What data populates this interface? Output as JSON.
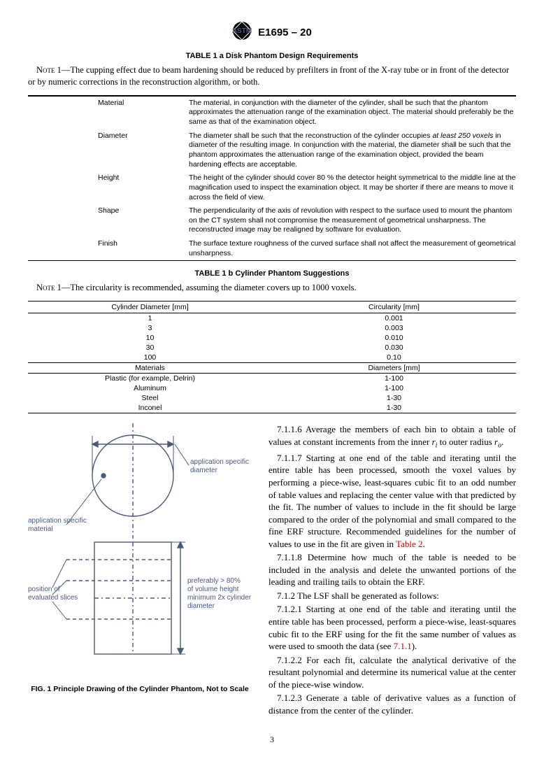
{
  "header": {
    "doc_id": "E1695 – 20"
  },
  "table1a": {
    "title": "TABLE 1 a Disk Phantom Design Requirements",
    "note": "NOTE 1—The cupping effect due to beam hardening should be reduced by prefilters in front of the X-ray tube or in front of the detector or by numeric corrections in the reconstruction algorithm, or both.",
    "rows": [
      {
        "label": "Material",
        "desc": "The material, in conjunction with the diameter of the cylinder, shall be such that the phantom approximates the attenuation range of the examination object. The material should preferably be the same as that of the examination object."
      },
      {
        "label": "Diameter",
        "desc_pre": "The diameter shall be such that the reconstruction of the cylinder occupies ",
        "desc_em": "at least 250 voxels",
        "desc_post": " in diameter of the resulting image. In conjunction with the material, the diameter shall be such that the phantom approximates the attenuation range of the examination object, provided the beam hardening effects are acceptable."
      },
      {
        "label": "Height",
        "desc": "The height of the cylinder should cover 80 % the detector height symmetrical to the middle line at the magnification used to inspect the examination object. It may be shorter if there are means to move it across the field of view."
      },
      {
        "label": "Shape",
        "desc": "The perpendicularity of the axis of revolution with respect to the surface used to mount the phantom on the CT system shall not compromise the measurement of geometrical unsharpness. The reconstructed image may be realigned by software for evaluation."
      },
      {
        "label": "Finish",
        "desc": "The surface texture roughness of the curved surface shall not affect the measurement of geometrical unsharpness."
      }
    ]
  },
  "table1b": {
    "title": "TABLE 1 b Cylinder Phantom Suggestions",
    "note": "NOTE 1—The circularity is recommended, assuming the diameter covers up to 1000 voxels.",
    "head1": [
      "Cylinder Diameter [mm]",
      "Circularity [mm]"
    ],
    "rows1": [
      [
        "1",
        "0.001"
      ],
      [
        "3",
        "0.003"
      ],
      [
        "10",
        "0.010"
      ],
      [
        "30",
        "0.030"
      ],
      [
        "100",
        "0.10"
      ]
    ],
    "head2": [
      "Materials",
      "Diameters [mm]"
    ],
    "rows2": [
      [
        "Plastic (for example, Delrin)",
        "1-100"
      ],
      [
        "Aluminum",
        "1-100"
      ],
      [
        "Steel",
        "1-30"
      ],
      [
        "Inconel",
        "1-30"
      ]
    ]
  },
  "figure": {
    "label_diameter": "application specific diameter",
    "label_material": "application specific material",
    "label_slices": "position of evaluated slices",
    "label_height": "preferably > 80% of volume height minimum 2x cylinder diameter",
    "caption": "FIG. 1  Principle Drawing of the Cylinder Phantom, Not to Scale"
  },
  "body": {
    "p1": "7.1.1.6  Average the members of each bin to obtain a table of values at constant increments from the inner ",
    "p1_ri": "r",
    "p1_ri_sub": "i",
    "p1b": " to outer radius ",
    "p1_ro": "r",
    "p1_ro_sub": "o",
    "p1c": ".",
    "p2a": "7.1.1.7  Starting at one end of the table and iterating until the entire table has been processed, smooth the voxel values by performing a piece-wise, least-squares cubic fit to an odd number of table values and replacing the center value with that predicted by the fit. The number of values to include in the fit should be large compared to the order of the polynomial and small compared to the fine ERF structure. Recommended guidelines for the number of values to use in the fit are given in ",
    "p2_link": "Table 2",
    "p2b": ".",
    "p3": "7.1.1.8  Determine how much of the table is needed to be included in the analysis and delete the unwanted portions of the leading and trailing tails to obtain the ERF.",
    "p4": "7.1.2  The LSF shall be generated as follows:",
    "p5a": "7.1.2.1  Starting at one end of the table and iterating until the entire table has been processed, perform a piece-wise, least-squares cubic fit to the ERF using for the fit the same number of values as were used to smooth the data (see ",
    "p5_link": "7.1.1",
    "p5b": ").",
    "p6": "7.1.2.2  For each fit, calculate the analytical derivative of the resultant polynomial and determine its numerical value at the center of the piece-wise window.",
    "p7": "7.1.2.3  Generate a table of derivative values as a function of distance from the center of the cylinder."
  },
  "page_number": "3",
  "colors": {
    "diagram_stroke": "#4a5a7a",
    "link_color": "#cc0000"
  }
}
